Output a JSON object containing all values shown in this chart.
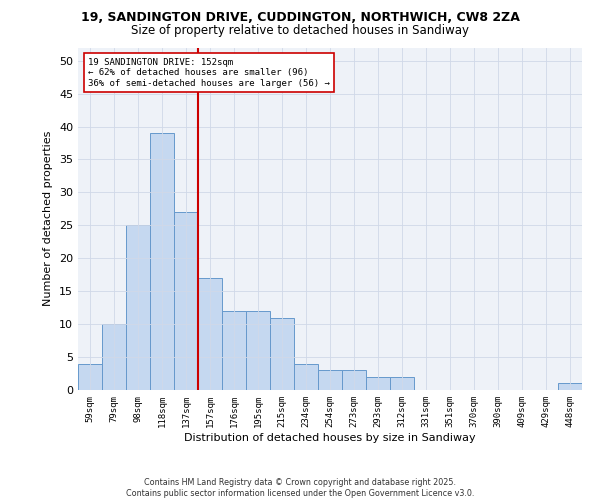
{
  "title_line1": "19, SANDINGTON DRIVE, CUDDINGTON, NORTHWICH, CW8 2ZA",
  "title_line2": "Size of property relative to detached houses in Sandiway",
  "xlabel": "Distribution of detached houses by size in Sandiway",
  "ylabel": "Number of detached properties",
  "categories": [
    "59sqm",
    "79sqm",
    "98sqm",
    "118sqm",
    "137sqm",
    "157sqm",
    "176sqm",
    "195sqm",
    "215sqm",
    "234sqm",
    "254sqm",
    "273sqm",
    "293sqm",
    "312sqm",
    "331sqm",
    "351sqm",
    "370sqm",
    "390sqm",
    "409sqm",
    "429sqm",
    "448sqm"
  ],
  "values": [
    4,
    10,
    25,
    39,
    27,
    17,
    12,
    12,
    11,
    4,
    3,
    3,
    2,
    2,
    0,
    0,
    0,
    0,
    0,
    0,
    1
  ],
  "bar_color": "#c5d8f0",
  "bar_edge_color": "#6699cc",
  "ref_line_color": "#cc0000",
  "annotation_title": "19 SANDINGTON DRIVE: 152sqm",
  "annotation_line2": "← 62% of detached houses are smaller (96)",
  "annotation_line3": "36% of semi-detached houses are larger (56) →",
  "annotation_box_edge": "#cc0000",
  "annotation_box_fill": "#ffffff",
  "ylim": [
    0,
    52
  ],
  "yticks": [
    0,
    5,
    10,
    15,
    20,
    25,
    30,
    35,
    40,
    45,
    50
  ],
  "grid_color": "#d0d8e8",
  "background_color": "#ffffff",
  "plot_bg_color": "#eef2f8",
  "footer_line1": "Contains HM Land Registry data © Crown copyright and database right 2025.",
  "footer_line2": "Contains public sector information licensed under the Open Government Licence v3.0.",
  "fig_width": 6.0,
  "fig_height": 5.0,
  "dpi": 100
}
